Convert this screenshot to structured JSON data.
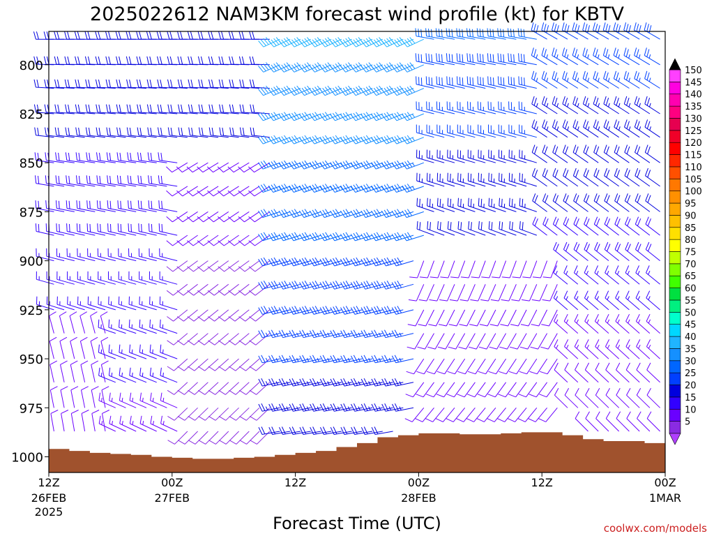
{
  "chart_data": {
    "type": "wind_profile_time_height",
    "title": "2025022612 NAM3KM forecast wind profile (kt) for KBTV",
    "xlabel": "Forecast Time (UTC)",
    "ylabel": "",
    "credit": "coolwx.com/models",
    "y_axis": {
      "units": "hPa",
      "reversed": true,
      "ticks": [
        800,
        825,
        850,
        875,
        900,
        925,
        950,
        975,
        1000
      ],
      "range": [
        1008,
        783
      ]
    },
    "x_axis": {
      "range_hours": [
        0,
        60
      ],
      "ticks": [
        {
          "label": "12Z",
          "date": "26FEB",
          "year": "2025"
        },
        {
          "label": "00Z",
          "date": "27FEB",
          "year": ""
        },
        {
          "label": "12Z",
          "date": "",
          "year": ""
        },
        {
          "label": "00Z",
          "date": "28FEB",
          "year": ""
        },
        {
          "label": "12Z",
          "date": "",
          "year": ""
        },
        {
          "label": "00Z",
          "date": "1MAR",
          "year": ""
        }
      ]
    },
    "colorbar": {
      "levels": [
        5,
        10,
        15,
        20,
        25,
        30,
        35,
        40,
        45,
        50,
        55,
        60,
        65,
        70,
        75,
        80,
        85,
        90,
        95,
        100,
        105,
        110,
        115,
        120,
        125,
        130,
        135,
        140,
        145,
        150
      ],
      "colors": [
        "#8a2be2",
        "#6a00ff",
        "#3200ff",
        "#0000dd",
        "#0040ff",
        "#0066ff",
        "#1590ff",
        "#20b4ff",
        "#00d7ff",
        "#00ffcc",
        "#00f080",
        "#00e040",
        "#40ff00",
        "#80ff00",
        "#c0ff00",
        "#ffff00",
        "#ffe000",
        "#ffc000",
        "#ffa800",
        "#ff9000",
        "#ff7800",
        "#ff5000",
        "#ff2800",
        "#ff0000",
        "#f00028",
        "#e60050",
        "#ff0080",
        "#ff00b0",
        "#ff00e0",
        "#ff40ff"
      ],
      "arrow_top_color": "#000000",
      "arrow_bottom_color": "#b040ff"
    },
    "wind_barbs": {
      "time_step_hours": 1,
      "pressure_levels": [
        787,
        800,
        812,
        825,
        837,
        850,
        862,
        875,
        887,
        900,
        912,
        925,
        937,
        950,
        962,
        975,
        987
      ],
      "speed_color_scale": "colorbar"
    },
    "terrain": {
      "color": "#a0522d",
      "surface_pressure": [
        {
          "hour": 0,
          "p": 996
        },
        {
          "hour": 2,
          "p": 997
        },
        {
          "hour": 4,
          "p": 998
        },
        {
          "hour": 6,
          "p": 998.5
        },
        {
          "hour": 8,
          "p": 999
        },
        {
          "hour": 10,
          "p": 1000
        },
        {
          "hour": 12,
          "p": 1000.5
        },
        {
          "hour": 14,
          "p": 1001
        },
        {
          "hour": 16,
          "p": 1001
        },
        {
          "hour": 18,
          "p": 1000.5
        },
        {
          "hour": 20,
          "p": 1000
        },
        {
          "hour": 22,
          "p": 999
        },
        {
          "hour": 24,
          "p": 998
        },
        {
          "hour": 26,
          "p": 997
        },
        {
          "hour": 28,
          "p": 995
        },
        {
          "hour": 30,
          "p": 993
        },
        {
          "hour": 32,
          "p": 990
        },
        {
          "hour": 34,
          "p": 989
        },
        {
          "hour": 36,
          "p": 988
        },
        {
          "hour": 38,
          "p": 988
        },
        {
          "hour": 40,
          "p": 988.5
        },
        {
          "hour": 42,
          "p": 988.5
        },
        {
          "hour": 44,
          "p": 988
        },
        {
          "hour": 46,
          "p": 987.5
        },
        {
          "hour": 48,
          "p": 987.5
        },
        {
          "hour": 50,
          "p": 989
        },
        {
          "hour": 52,
          "p": 991
        },
        {
          "hour": 54,
          "p": 992
        },
        {
          "hour": 56,
          "p": 992
        },
        {
          "hour": 58,
          "p": 993
        },
        {
          "hour": 60,
          "p": 995
        }
      ]
    }
  }
}
